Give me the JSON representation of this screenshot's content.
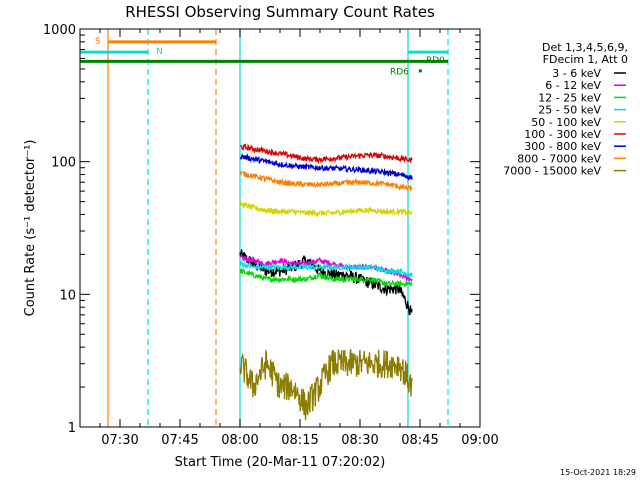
{
  "chart_data": {
    "type": "line",
    "title": "RHESSI Observing Summary Count Rates",
    "xlabel": "Start Time (20-Mar-11 07:20:02)",
    "ylabel": "Count Rate (s⁻¹ detector⁻¹)",
    "y_scale": "log",
    "ylim": [
      1,
      1000
    ],
    "xlim_minutes_after_0720": [
      0,
      100
    ],
    "x_ticks": [
      {
        "minutes": 10,
        "label": "07:30"
      },
      {
        "minutes": 25,
        "label": "07:45"
      },
      {
        "minutes": 40,
        "label": "08:00"
      },
      {
        "minutes": 55,
        "label": "08:15"
      },
      {
        "minutes": 70,
        "label": "08:30"
      },
      {
        "minutes": 85,
        "label": "08:45"
      },
      {
        "minutes": 100,
        "label": "09:00"
      }
    ],
    "y_ticks": [
      {
        "value": 1,
        "label": "1"
      },
      {
        "value": 10,
        "label": "10"
      },
      {
        "value": 100,
        "label": "100"
      },
      {
        "value": 1000,
        "label": "1000"
      }
    ],
    "legend": {
      "position": "top-right",
      "header": [
        "Det 1,3,4,5,6,9,",
        "FDecim 1, Att 0"
      ],
      "entries": [
        {
          "label": "3 - 6 keV",
          "color": "#000000"
        },
        {
          "label": "6 - 12 keV",
          "color": "#e000e0"
        },
        {
          "label": "12 - 25 keV",
          "color": "#00dd00"
        },
        {
          "label": "25 - 50 keV",
          "color": "#00e0e0"
        },
        {
          "label": "50 - 100 keV",
          "color": "#d4d400"
        },
        {
          "label": "100 - 300 keV",
          "color": "#dd0000"
        },
        {
          "label": "300 - 800 keV",
          "color": "#0000cc"
        },
        {
          "label": "800 - 7000 keV",
          "color": "#ff7f00"
        },
        {
          "label": "7000 - 15000 keV",
          "color": "#8b7d00"
        }
      ]
    },
    "series": [
      {
        "name": "3 - 6 keV",
        "color": "#000000",
        "t_range": [
          40,
          83
        ],
        "values": [
          20,
          17,
          15,
          15,
          16,
          18,
          15,
          14,
          14,
          13,
          12,
          11,
          11,
          7
        ]
      },
      {
        "name": "6 - 12 keV",
        "color": "#e000e0",
        "t_range": [
          40,
          83
        ],
        "values": [
          19,
          18,
          17,
          18,
          17,
          17,
          18,
          17,
          16,
          16,
          16,
          15,
          14,
          13
        ]
      },
      {
        "name": "12 - 25 keV",
        "color": "#00dd00",
        "t_range": [
          40,
          83
        ],
        "values": [
          15,
          14,
          13,
          13,
          13,
          13,
          14,
          13,
          13,
          13,
          13,
          12,
          12,
          12
        ]
      },
      {
        "name": "25 - 50 keV",
        "color": "#00e0e0",
        "t_range": [
          40,
          83
        ],
        "values": [
          17,
          16,
          16,
          16,
          16,
          16,
          16,
          16,
          16,
          16,
          16,
          15,
          15,
          14
        ]
      },
      {
        "name": "50 - 100 keV",
        "color": "#d4d400",
        "t_range": [
          40,
          83
        ],
        "values": [
          48,
          45,
          43,
          42,
          42,
          41,
          41,
          41,
          42,
          43,
          43,
          42,
          42,
          41
        ]
      },
      {
        "name": "100 - 300 keV",
        "color": "#dd0000",
        "t_range": [
          40,
          83
        ],
        "values": [
          130,
          125,
          120,
          115,
          110,
          105,
          104,
          106,
          108,
          111,
          112,
          110,
          106,
          102
        ]
      },
      {
        "name": "300 - 800 keV",
        "color": "#0000cc",
        "t_range": [
          40,
          83
        ],
        "values": [
          110,
          105,
          100,
          96,
          93,
          91,
          90,
          89,
          88,
          87,
          85,
          83,
          80,
          76
        ]
      },
      {
        "name": "800 - 7000 keV",
        "color": "#ff7f00",
        "t_range": [
          40,
          83
        ],
        "values": [
          82,
          78,
          74,
          70,
          68,
          67,
          67,
          68,
          69,
          70,
          69,
          68,
          65,
          62
        ]
      },
      {
        "name": "7000 - 15000 keV",
        "color": "#8b7d00",
        "t_range": [
          40,
          83
        ],
        "values": [
          3,
          2,
          3,
          2,
          2,
          1.4,
          2,
          3,
          3,
          3,
          3,
          3,
          3,
          2
        ]
      }
    ],
    "annotations": {
      "s_bar": {
        "label": "S",
        "start": 7,
        "end": 34,
        "value": 800,
        "color": "#ff7f00"
      },
      "n_bar": {
        "label": "N",
        "segments": [
          [
            0,
            17
          ]
        ],
        "value": 670,
        "color": "#00e0e0"
      },
      "n_bar_right": {
        "segments": [
          [
            82,
            92
          ]
        ],
        "value": 670,
        "color": "#00e0e0"
      },
      "rd_bar": {
        "start": 0,
        "end": 92,
        "value": 570,
        "color": "#008000"
      },
      "rd0_label": "RD0",
      "rd6_label": "RD6",
      "vlines": [
        {
          "t": 7,
          "color": "#ff7f00",
          "style": "solid"
        },
        {
          "t": 17,
          "color": "#00e0e0",
          "style": "dashed"
        },
        {
          "t": 34,
          "color": "#ff7f00",
          "style": "dashed"
        },
        {
          "t": 40,
          "color": "#00e0e0",
          "style": "solid"
        },
        {
          "t": 82,
          "color": "#00e0e0",
          "style": "solid"
        },
        {
          "t": 92,
          "color": "#00e0e0",
          "style": "dashed"
        }
      ]
    },
    "timestamp": "15-Oct-2021 18:29"
  }
}
